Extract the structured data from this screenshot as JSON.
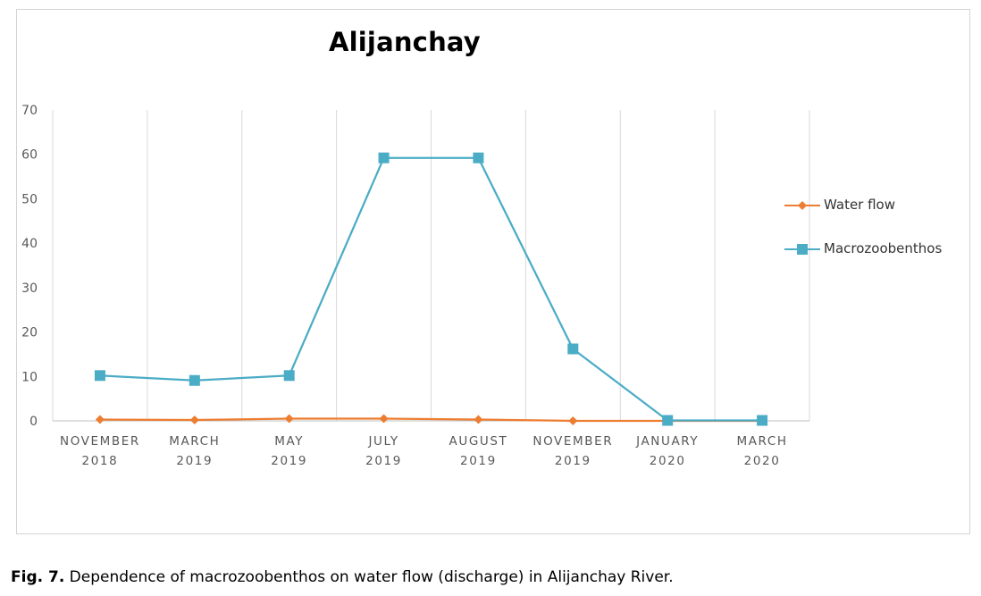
{
  "chart_data": {
    "type": "line",
    "title": "Alijanchay",
    "categories": [
      [
        "NOVEMBER",
        "2018"
      ],
      [
        "MARCH",
        "2019"
      ],
      [
        "MAY",
        "2019"
      ],
      [
        "JULY",
        "2019"
      ],
      [
        "AUGUST",
        "2019"
      ],
      [
        "NOVEMBER",
        "2019"
      ],
      [
        "JANUARY",
        "2020"
      ],
      [
        "MARCH",
        "2020"
      ]
    ],
    "series": [
      {
        "name": "Water flow",
        "color": "#ed7d31",
        "marker": "diamond",
        "values": [
          0.3,
          0.2,
          0.5,
          0.5,
          0.3,
          0.0,
          0.0,
          0.0
        ]
      },
      {
        "name": "Macrozoobenthos",
        "color": "#4bacc6",
        "marker": "square",
        "values": [
          10.2,
          9.1,
          10.2,
          59.2,
          59.2,
          16.2,
          0.1,
          0.1
        ]
      }
    ],
    "ylim": [
      0,
      70
    ],
    "yticks": [
      "0",
      "10",
      "20",
      "30",
      "40",
      "50",
      "60",
      "70"
    ],
    "xlabel": "",
    "ylabel": "",
    "grid": "vertical",
    "legend": "right"
  },
  "caption": {
    "label": "Fig. 7.",
    "text": " Dependence of macrozoobenthos on water flow (discharge) in Alijanchay River."
  }
}
